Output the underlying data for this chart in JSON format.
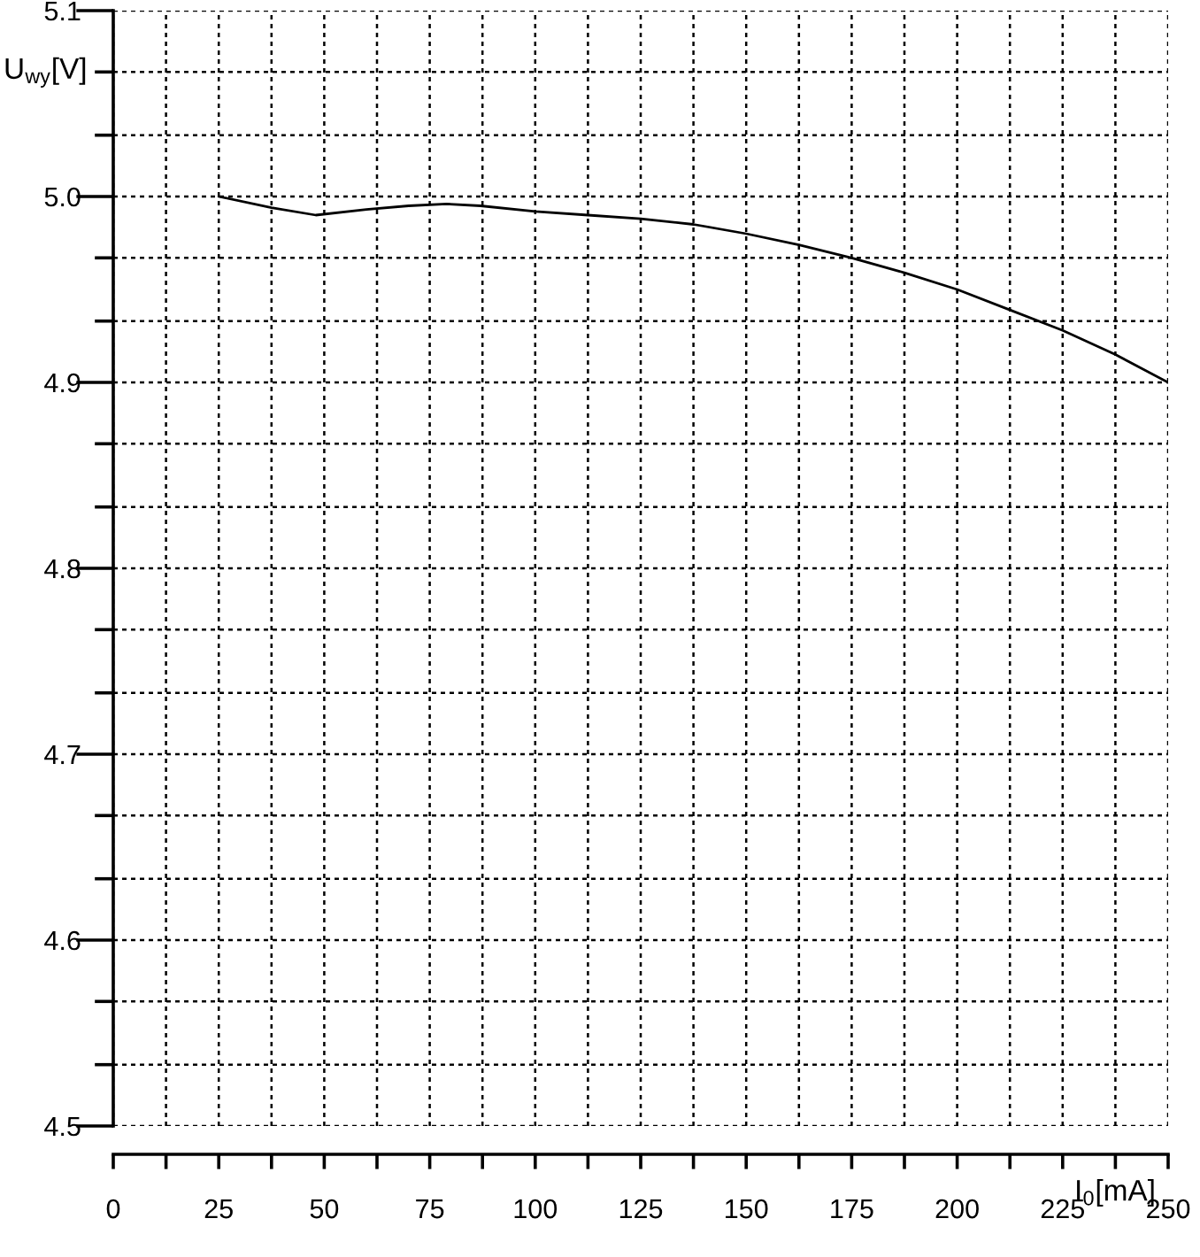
{
  "chart_data": {
    "type": "line",
    "xlabel": "I$_{0}$[mA]",
    "ylabel": "U$_{wy}$[V]",
    "x": [
      25,
      37.5,
      48,
      60,
      70,
      79,
      87,
      100,
      112.5,
      125,
      137.5,
      150,
      162.5,
      175,
      187.5,
      200,
      212.5,
      225,
      237.5,
      250
    ],
    "series": [
      {
        "color": "#000000",
        "values": [
          5.0,
          4.994,
          4.99,
          4.993,
          4.995,
          4.996,
          4.995,
          4.992,
          4.99,
          4.988,
          4.985,
          4.98,
          4.974,
          4.967,
          4.959,
          4.95,
          4.939,
          4.928,
          4.915,
          4.9
        ]
      }
    ],
    "xlim": [
      0,
      250
    ],
    "ylim": [
      4.5,
      5.1
    ],
    "xticks": [
      0,
      {
        "value": 12.5,
        "label": null
      },
      25,
      {
        "value": 37.5,
        "label": null
      },
      50,
      {
        "value": 62.5,
        "label": null
      },
      75,
      {
        "value": 87.5,
        "label": null
      },
      100,
      {
        "value": 112.5,
        "label": null
      },
      125,
      {
        "value": 137.5,
        "label": null
      },
      150,
      {
        "value": 162.5,
        "label": null
      },
      175,
      {
        "value": 187.5,
        "label": null
      },
      200,
      {
        "value": 212.5,
        "label": null
      },
      225,
      {
        "value": 237.5,
        "label": null
      },
      250
    ],
    "yticks": [
      4.5,
      {
        "value": 4.533,
        "label": null
      },
      {
        "value": 4.567,
        "label": null
      },
      4.6,
      {
        "value": 4.633,
        "label": null
      },
      {
        "value": 4.667,
        "label": null
      },
      4.7,
      {
        "value": 4.733,
        "label": null
      },
      {
        "value": 4.767,
        "label": null
      },
      4.8,
      {
        "value": 4.833,
        "label": null
      },
      {
        "value": 4.867,
        "label": null
      },
      4.9,
      {
        "value": 4.933,
        "label": null
      },
      {
        "value": 4.967,
        "label": null
      },
      {
        "value": 5,
        "label": "5.0"
      },
      {
        "value": 5.033,
        "label": null
      },
      {
        "value": 5.067,
        "label": null
      },
      5.1
    ],
    "grid": true,
    "line_style": "solid"
  }
}
